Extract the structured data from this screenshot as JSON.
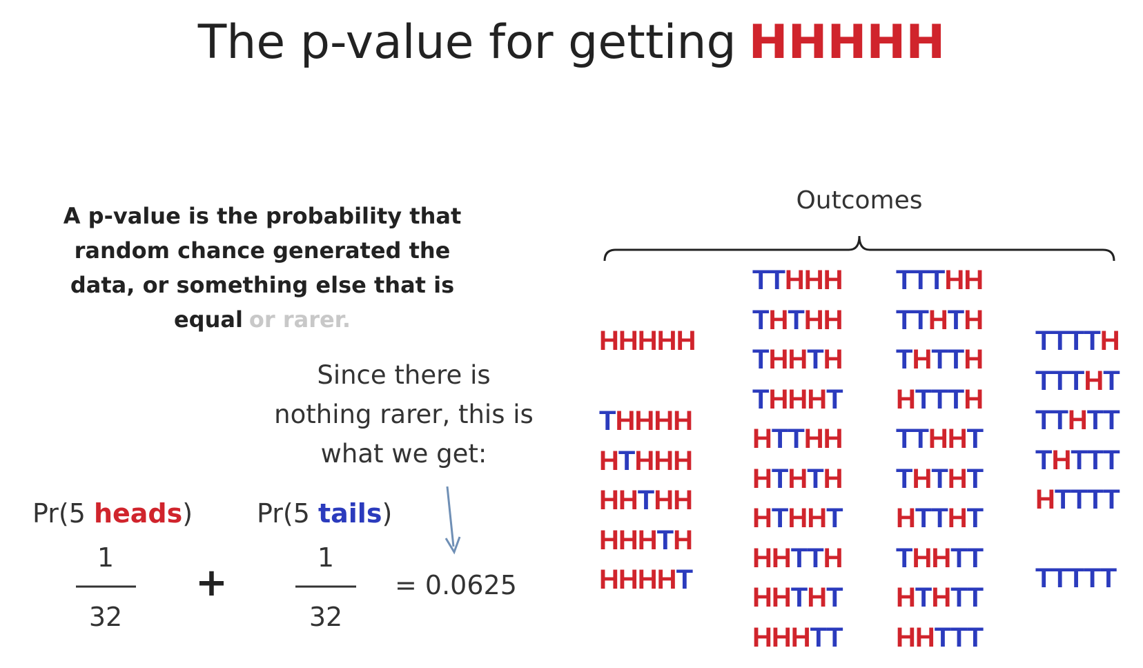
{
  "title": {
    "text": "The p-value for getting",
    "highlight": "HHHHH"
  },
  "definition": {
    "text": "A p-value is the probability that random chance generated the data, or something else that is equal",
    "faded": "or rarer."
  },
  "note": "Since there is nothing rarer, this is what we get:",
  "formula": {
    "left": {
      "prefix": "Pr(5",
      "word": "heads",
      "suffix": ")",
      "numerator": "1",
      "denominator": "32"
    },
    "operator": "+",
    "right": {
      "prefix": "Pr(5",
      "word": "tails",
      "suffix": ")",
      "numerator": "1",
      "denominator": "32"
    },
    "result": "= 0.0625"
  },
  "outcomes": {
    "label": "Outcomes",
    "letter_colors": {
      "H": "#d0242c",
      "T": "#2b3bbd"
    },
    "groups": [
      [
        "HHHHH"
      ],
      [
        "THHHH",
        "HTHHH",
        "HHTHH",
        "HHHTH",
        "HHHHT"
      ],
      [
        "TTHHH",
        "THTHH",
        "THHTH",
        "THHHT",
        "HTTHH",
        "HTHTH",
        "HTHHT",
        "HHTTH",
        "HHTHT",
        "HHHTT"
      ],
      [
        "TTTHH",
        "TTHTH",
        "THTTH",
        "HTTTH",
        "TTHHT",
        "THTHT",
        "HTTHT",
        "THHTT",
        "HTHTT",
        "HHTTT"
      ],
      [
        "TTTTH",
        "TTTHT",
        "TTHTT",
        "THTTT",
        "HTTTT"
      ],
      [
        "TTTTT"
      ]
    ]
  }
}
